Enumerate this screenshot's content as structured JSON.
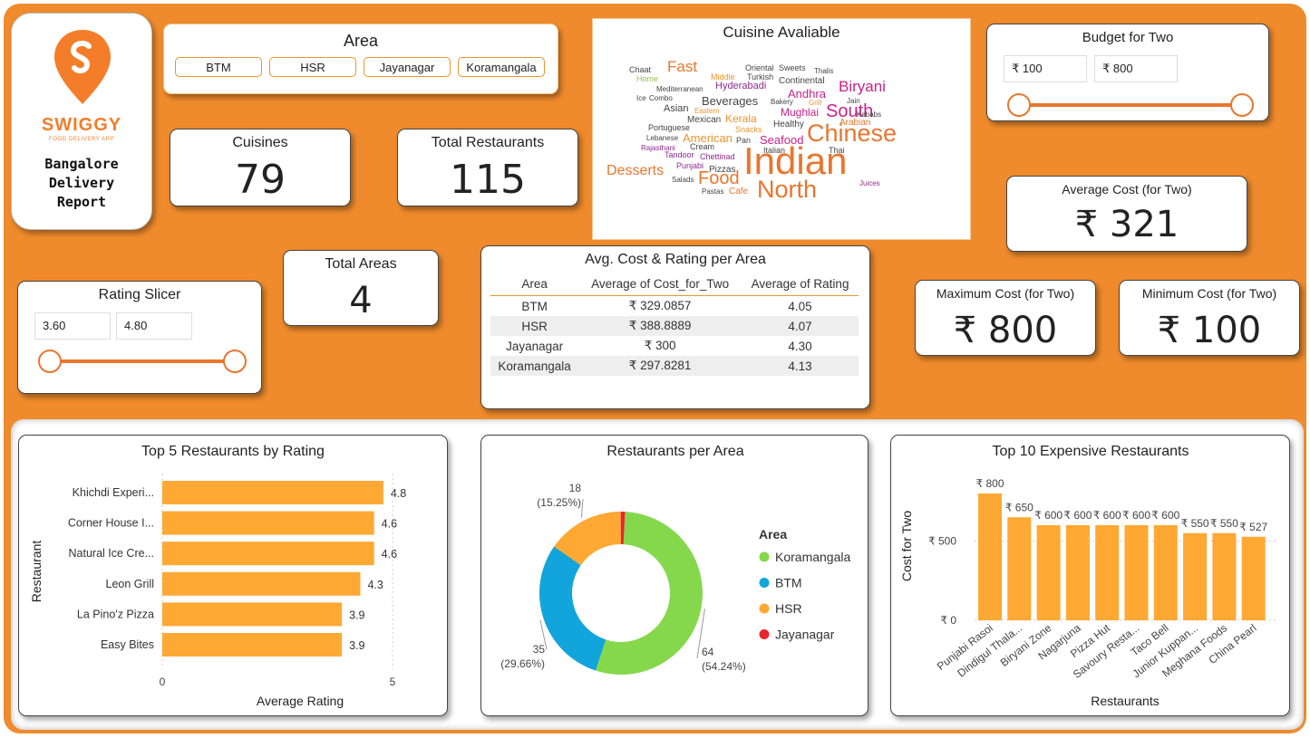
{
  "logo": {
    "brand": "SWIGGY",
    "tagline": "FOOD DELIVERY APP",
    "report_title": [
      "Bangalore",
      "Delivery",
      "Report"
    ]
  },
  "area_slicer": {
    "title": "Area",
    "options": [
      "BTM",
      "HSR",
      "Jayanagar",
      "Koramangala"
    ]
  },
  "cuisine_cloud": {
    "title": "Cuisine Avaliable",
    "words": [
      {
        "t": "Chaat",
        "c": "#444"
      },
      {
        "t": "Home",
        "c": "#8CC63F"
      },
      {
        "t": "Fast",
        "c": "#E8762E"
      },
      {
        "t": "Middle",
        "c": "#E8962E"
      },
      {
        "t": "Oriental",
        "c": "#444"
      },
      {
        "t": "Sweets",
        "c": "#444"
      },
      {
        "t": "Thalis",
        "c": "#444"
      },
      {
        "t": "Turkish",
        "c": "#444"
      },
      {
        "t": "Continental",
        "c": "#444"
      },
      {
        "t": "Biryani",
        "c": "#C9218A"
      },
      {
        "t": "Mediterranean",
        "c": "#444"
      },
      {
        "t": "Hyderabadi",
        "c": "#8E2A8E"
      },
      {
        "t": "Andhra",
        "c": "#C9218A"
      },
      {
        "t": "Ice",
        "c": "#444"
      },
      {
        "t": "Combo",
        "c": "#444"
      },
      {
        "t": "Beverages",
        "c": "#444"
      },
      {
        "t": "Bakery",
        "c": "#444"
      },
      {
        "t": "Jain",
        "c": "#444"
      },
      {
        "t": "Asian",
        "c": "#444"
      },
      {
        "t": "Eastern",
        "c": "#E8962E"
      },
      {
        "t": "Mughlai",
        "c": "#C9218A"
      },
      {
        "t": "Grill",
        "c": "#E8962E"
      },
      {
        "t": "South",
        "c": "#C9218A"
      },
      {
        "t": "Kebabs",
        "c": "#444"
      },
      {
        "t": "Mexican",
        "c": "#444"
      },
      {
        "t": "Kerala",
        "c": "#E8962E"
      },
      {
        "t": "Arabian",
        "c": "#E8762E"
      },
      {
        "t": "Portuguese",
        "c": "#444"
      },
      {
        "t": "Snacks",
        "c": "#E8962E"
      },
      {
        "t": "Healthy",
        "c": "#444"
      },
      {
        "t": "Lebanese",
        "c": "#444"
      },
      {
        "t": "American",
        "c": "#E8962E"
      },
      {
        "t": "Pan",
        "c": "#444"
      },
      {
        "t": "Seafood",
        "c": "#C9218A"
      },
      {
        "t": "Chinese",
        "c": "#E8762E"
      },
      {
        "t": "Rajasthani",
        "c": "#8E2A8E"
      },
      {
        "t": "Cream",
        "c": "#444"
      },
      {
        "t": "Italian",
        "c": "#444"
      },
      {
        "t": "Thai",
        "c": "#444"
      },
      {
        "t": "Tandoor",
        "c": "#8E2A8E"
      },
      {
        "t": "Chettinad",
        "c": "#8E2A8E"
      },
      {
        "t": "Indian",
        "c": "#E8762E"
      },
      {
        "t": "Punjabi",
        "c": "#8E2A8E"
      },
      {
        "t": "Desserts",
        "c": "#E8762E"
      },
      {
        "t": "Pizzas",
        "c": "#444"
      },
      {
        "t": "Salads",
        "c": "#444"
      },
      {
        "t": "Food",
        "c": "#E8762E"
      },
      {
        "t": "Juices",
        "c": "#8E2A8E"
      },
      {
        "t": "North",
        "c": "#E8762E"
      },
      {
        "t": "Pastas",
        "c": "#444"
      },
      {
        "t": "Cafe",
        "c": "#E8762E"
      }
    ]
  },
  "budget_slicer": {
    "title": "Budget for Two",
    "min": "₹ 100",
    "max": "₹ 800",
    "low_fraction": 0,
    "high_fraction": 1
  },
  "kpis": {
    "cuisines": {
      "label": "Cuisines",
      "value": "79"
    },
    "total_restaurants": {
      "label": "Total Restaurants",
      "value": "115"
    },
    "total_areas": {
      "label": "Total Areas",
      "value": "4"
    },
    "avg_cost": {
      "label": "Average Cost (for Two)",
      "value": "₹ 321"
    },
    "max_cost": {
      "label": "Maximum Cost (for Two)",
      "value": "₹ 800"
    },
    "min_cost": {
      "label": "Minimum Cost (for Two)",
      "value": "₹ 100"
    }
  },
  "rating_slicer": {
    "title": "Rating Slicer",
    "min": "3.60",
    "max": "4.80",
    "low_fraction": 0,
    "high_fraction": 1
  },
  "area_table": {
    "title": "Avg. Cost & Rating per Area",
    "headers": [
      "Area",
      "Average of Cost_for_Two",
      "Average of Rating"
    ],
    "rows": [
      [
        "BTM",
        "₹ 329.0857",
        "4.05"
      ],
      [
        "HSR",
        "₹ 388.8889",
        "4.07"
      ],
      [
        "Jayanagar",
        "₹ 300",
        "4.30"
      ],
      [
        "Koramangala",
        "₹ 297.8281",
        "4.13"
      ]
    ]
  },
  "chart_data": [
    {
      "type": "bar",
      "orientation": "horizontal",
      "title": "Top 5 Restaurants by Rating",
      "xlabel": "Average Rating",
      "ylabel": "Restaurant",
      "xlim": [
        0,
        5
      ],
      "ticks": [
        "0",
        "5"
      ],
      "color": "#FFA833",
      "categories": [
        "Khichdi Experi...",
        "Corner House I...",
        "Natural Ice Cre...",
        "Leon Grill",
        "La Pino'z Pizza",
        "Easy Bites"
      ],
      "values": [
        4.8,
        4.6,
        4.6,
        4.3,
        3.9,
        3.9
      ],
      "labels": [
        "4.8",
        "4.6",
        "4.6",
        "4.3",
        "3.9",
        "3.9"
      ]
    },
    {
      "type": "pie",
      "donut": true,
      "title": "Restaurants per Area",
      "legend_title": "Area",
      "legend_position": "right",
      "slices": [
        {
          "name": "Koramangala",
          "value": 64,
          "pct": "(54.24%)",
          "color": "#85D84B"
        },
        {
          "name": "BTM",
          "value": 35,
          "pct": "(29.66%)",
          "color": "#12A5DB"
        },
        {
          "name": "HSR",
          "value": 18,
          "pct": "(15.25%)",
          "color": "#FFA833"
        },
        {
          "name": "Jayanagar",
          "value": 1,
          "pct": "",
          "color": "#E8262E"
        }
      ]
    },
    {
      "type": "bar",
      "title": "Top 10 Expensive Restaurants",
      "xlabel": "Restaurants",
      "ylabel": "Cost for Two",
      "ylim": [
        0,
        800
      ],
      "yticks": [
        {
          "v": 0,
          "t": "₹ 0"
        },
        {
          "v": 500,
          "t": "₹ 500"
        }
      ],
      "color": "#FFA833",
      "categories": [
        "Punjabi Rasoi",
        "Dindigul Thala...",
        "Biryani Zone",
        "Nagarjuna",
        "Pizza Hut",
        "Savoury Resta...",
        "Taco Bell",
        "Junior Kuppan...",
        "Meghana Foods",
        "China Pearl"
      ],
      "values": [
        800,
        650,
        600,
        600,
        600,
        600,
        600,
        550,
        550,
        527
      ],
      "labels": [
        "₹ 800",
        "₹ 650",
        "₹ 600",
        "₹ 600",
        "₹ 600",
        "₹ 600",
        "₹ 600",
        "₹ 550",
        "₹ 550",
        "₹ 527"
      ]
    }
  ]
}
